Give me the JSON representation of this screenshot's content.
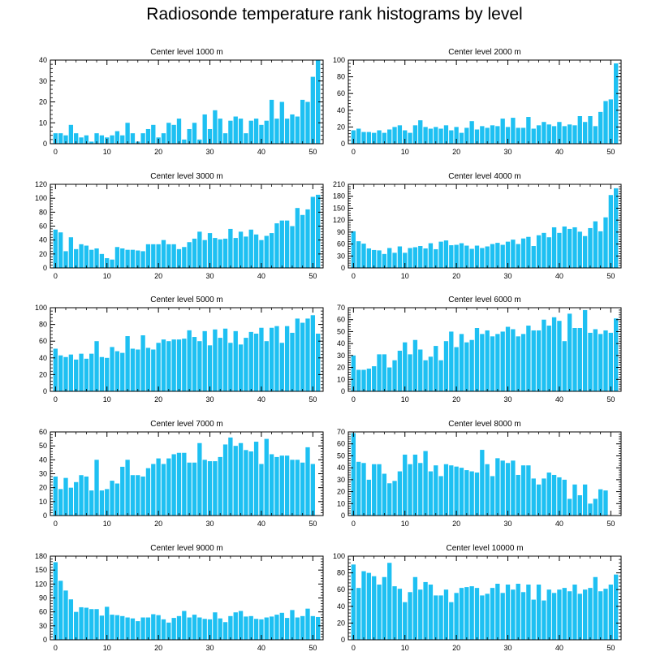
{
  "figure_title": "Radiosonde temperature rank histograms by level",
  "colors": {
    "bar": "#1ec0f2",
    "axis": "#000000",
    "background": "#ffffff"
  },
  "chart_data": [
    {
      "type": "bar",
      "title": "Center level 1000 m",
      "xlim": [
        -1,
        52
      ],
      "ylim": [
        0,
        40
      ],
      "xticks": [
        0,
        10,
        20,
        30,
        40,
        50
      ],
      "yticks": [
        0,
        10,
        20,
        30,
        40
      ],
      "values": [
        5,
        5,
        4,
        9,
        5,
        3,
        4,
        1,
        5,
        4,
        3,
        4,
        6,
        4,
        10,
        5,
        1,
        5,
        7,
        9,
        3,
        5,
        10,
        9,
        12,
        2,
        7,
        10,
        2,
        14,
        7,
        16,
        12,
        5,
        11,
        13,
        12,
        5,
        11,
        12,
        9,
        11,
        21,
        12,
        20,
        12,
        14,
        13,
        21,
        20,
        32,
        40
      ]
    },
    {
      "type": "bar",
      "title": "Center level 2000 m",
      "xlim": [
        -1,
        52
      ],
      "ylim": [
        0,
        100
      ],
      "xticks": [
        0,
        10,
        20,
        30,
        40,
        50
      ],
      "yticks": [
        0,
        20,
        40,
        60,
        80,
        100
      ],
      "values": [
        16,
        18,
        14,
        14,
        13,
        16,
        13,
        17,
        20,
        22,
        16,
        13,
        22,
        28,
        20,
        18,
        20,
        18,
        22,
        16,
        20,
        13,
        19,
        27,
        17,
        21,
        19,
        22,
        21,
        30,
        20,
        31,
        19,
        19,
        32,
        18,
        22,
        26,
        23,
        21,
        26,
        21,
        23,
        22,
        33,
        26,
        33,
        21,
        38,
        51,
        53,
        96
      ]
    },
    {
      "type": "bar",
      "title": "Center level 3000 m",
      "xlim": [
        -1,
        52
      ],
      "ylim": [
        0,
        120
      ],
      "xticks": [
        0,
        10,
        20,
        30,
        40,
        50
      ],
      "yticks": [
        0,
        20,
        40,
        60,
        80,
        100,
        120
      ],
      "values": [
        55,
        51,
        24,
        44,
        27,
        34,
        32,
        26,
        28,
        20,
        14,
        12,
        30,
        28,
        26,
        26,
        25,
        24,
        34,
        34,
        34,
        40,
        34,
        34,
        27,
        30,
        37,
        42,
        52,
        40,
        50,
        43,
        41,
        42,
        56,
        43,
        52,
        45,
        55,
        48,
        40,
        46,
        50,
        64,
        68,
        68,
        60,
        86,
        76,
        84,
        102,
        105
      ]
    },
    {
      "type": "bar",
      "title": "Center level 4000 m",
      "xlim": [
        -1,
        52
      ],
      "ylim": [
        0,
        210
      ],
      "xticks": [
        0,
        10,
        20,
        30,
        40,
        50
      ],
      "yticks": [
        0,
        30,
        60,
        90,
        120,
        150,
        180,
        210
      ],
      "values": [
        92,
        67,
        61,
        49,
        45,
        44,
        35,
        50,
        38,
        54,
        38,
        50,
        52,
        55,
        49,
        62,
        47,
        66,
        69,
        57,
        58,
        62,
        56,
        48,
        56,
        50,
        54,
        60,
        63,
        58,
        66,
        71,
        60,
        74,
        78,
        55,
        82,
        88,
        77,
        102,
        88,
        104,
        98,
        102,
        91,
        80,
        100,
        117,
        92,
        127,
        183,
        200
      ]
    },
    {
      "type": "bar",
      "title": "Center level 5000 m",
      "xlim": [
        -1,
        52
      ],
      "ylim": [
        0,
        100
      ],
      "xticks": [
        0,
        10,
        20,
        30,
        40,
        50
      ],
      "yticks": [
        0,
        20,
        40,
        60,
        80,
        100
      ],
      "values": [
        51,
        43,
        41,
        44,
        38,
        45,
        39,
        45,
        60,
        41,
        40,
        53,
        48,
        46,
        66,
        51,
        50,
        67,
        52,
        50,
        58,
        62,
        60,
        62,
        62,
        63,
        73,
        65,
        60,
        72,
        55,
        74,
        64,
        75,
        58,
        72,
        56,
        64,
        71,
        69,
        76,
        60,
        76,
        78,
        58,
        78,
        70,
        87,
        82,
        87,
        91,
        69
      ]
    },
    {
      "type": "bar",
      "title": "Center level 6000 m",
      "xlim": [
        -1,
        52
      ],
      "ylim": [
        0,
        70
      ],
      "xticks": [
        0,
        10,
        20,
        30,
        40,
        50
      ],
      "yticks": [
        0,
        10,
        20,
        30,
        40,
        50,
        60,
        70
      ],
      "values": [
        30,
        18,
        18,
        19,
        21,
        31,
        31,
        20,
        26,
        34,
        41,
        31,
        43,
        35,
        26,
        29,
        38,
        26,
        42,
        50,
        37,
        48,
        41,
        43,
        53,
        48,
        51,
        46,
        48,
        50,
        54,
        52,
        46,
        48,
        55,
        51,
        51,
        60,
        55,
        62,
        59,
        42,
        65,
        53,
        53,
        68,
        49,
        52,
        48,
        51,
        49,
        61
      ]
    },
    {
      "type": "bar",
      "title": "Center level 7000 m",
      "xlim": [
        -1,
        52
      ],
      "ylim": [
        0,
        60
      ],
      "xticks": [
        0,
        10,
        20,
        30,
        40,
        50
      ],
      "yticks": [
        0,
        10,
        20,
        30,
        40,
        50,
        60
      ],
      "values": [
        28,
        19,
        27,
        20,
        24,
        29,
        28,
        18,
        40,
        18,
        19,
        25,
        23,
        35,
        40,
        29,
        29,
        28,
        34,
        37,
        41,
        37,
        41,
        44,
        45,
        45,
        38,
        38,
        52,
        40,
        39,
        39,
        42,
        51,
        56,
        50,
        52,
        47,
        46,
        53,
        37,
        55,
        44,
        42,
        43,
        43,
        40,
        40,
        38,
        49,
        37,
        0
      ]
    },
    {
      "type": "bar",
      "title": "Center level 8000 m",
      "xlim": [
        -1,
        52
      ],
      "ylim": [
        0,
        70
      ],
      "xticks": [
        0,
        10,
        20,
        30,
        40,
        50
      ],
      "yticks": [
        0,
        10,
        20,
        30,
        40,
        50,
        60,
        70
      ],
      "values": [
        69,
        45,
        44,
        30,
        43,
        43,
        35,
        27,
        29,
        37,
        51,
        43,
        51,
        44,
        54,
        37,
        42,
        33,
        43,
        42,
        41,
        40,
        38,
        37,
        36,
        55,
        43,
        33,
        48,
        46,
        44,
        46,
        34,
        42,
        42,
        31,
        26,
        31,
        36,
        34,
        32,
        30,
        14,
        26,
        17,
        26,
        10,
        14,
        22,
        21,
        0,
        0
      ]
    },
    {
      "type": "bar",
      "title": "Center level 9000 m",
      "xlim": [
        -1,
        52
      ],
      "ylim": [
        0,
        180
      ],
      "xticks": [
        0,
        10,
        20,
        30,
        40,
        50
      ],
      "yticks": [
        0,
        30,
        60,
        90,
        120,
        150,
        180
      ],
      "values": [
        167,
        127,
        106,
        87,
        60,
        70,
        69,
        66,
        66,
        52,
        71,
        54,
        53,
        51,
        48,
        46,
        40,
        48,
        48,
        55,
        53,
        44,
        37,
        47,
        51,
        62,
        48,
        54,
        48,
        45,
        44,
        59,
        46,
        38,
        51,
        59,
        62,
        50,
        51,
        45,
        44,
        48,
        50,
        54,
        58,
        47,
        64,
        48,
        51,
        67,
        51,
        49
      ]
    },
    {
      "type": "bar",
      "title": "Center level 10000 m",
      "xlim": [
        -1,
        52
      ],
      "ylim": [
        0,
        100
      ],
      "xticks": [
        0,
        10,
        20,
        30,
        40,
        50
      ],
      "yticks": [
        0,
        20,
        40,
        60,
        80,
        100
      ],
      "values": [
        90,
        62,
        82,
        80,
        76,
        66,
        75,
        92,
        64,
        61,
        45,
        57,
        75,
        60,
        69,
        66,
        53,
        53,
        60,
        45,
        56,
        62,
        63,
        64,
        62,
        53,
        55,
        62,
        67,
        56,
        66,
        60,
        67,
        57,
        66,
        48,
        66,
        47,
        60,
        56,
        60,
        62,
        58,
        66,
        55,
        60,
        62,
        75,
        58,
        61,
        66,
        78
      ]
    }
  ]
}
